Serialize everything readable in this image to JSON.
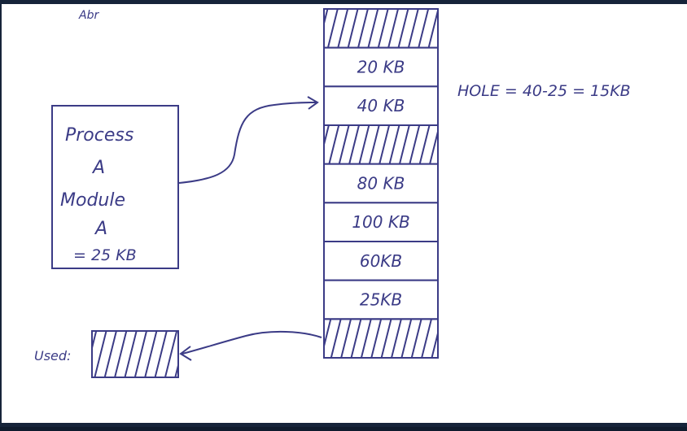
{
  "header": {
    "scribble": "Abr"
  },
  "memory": {
    "blocks": [
      {
        "type": "hatched"
      },
      {
        "type": "label",
        "label": "20 KB"
      },
      {
        "type": "label",
        "label": "40 KB"
      },
      {
        "type": "hatched"
      },
      {
        "type": "label",
        "label": "80 KB"
      },
      {
        "type": "label",
        "label": "100 KB"
      },
      {
        "type": "label",
        "label": "60KB"
      },
      {
        "type": "label",
        "label": "25KB"
      },
      {
        "type": "hatched"
      }
    ]
  },
  "hole_note": "HOLE = 40-25 = 15KB",
  "process_box": {
    "line1": "Process",
    "line2": "A",
    "line3": "Module",
    "line4": "A",
    "line5": "= 25 KB"
  },
  "used_label": "Used:",
  "colors": {
    "ink": "#3b3b86",
    "frame": "#0f1b2d"
  }
}
